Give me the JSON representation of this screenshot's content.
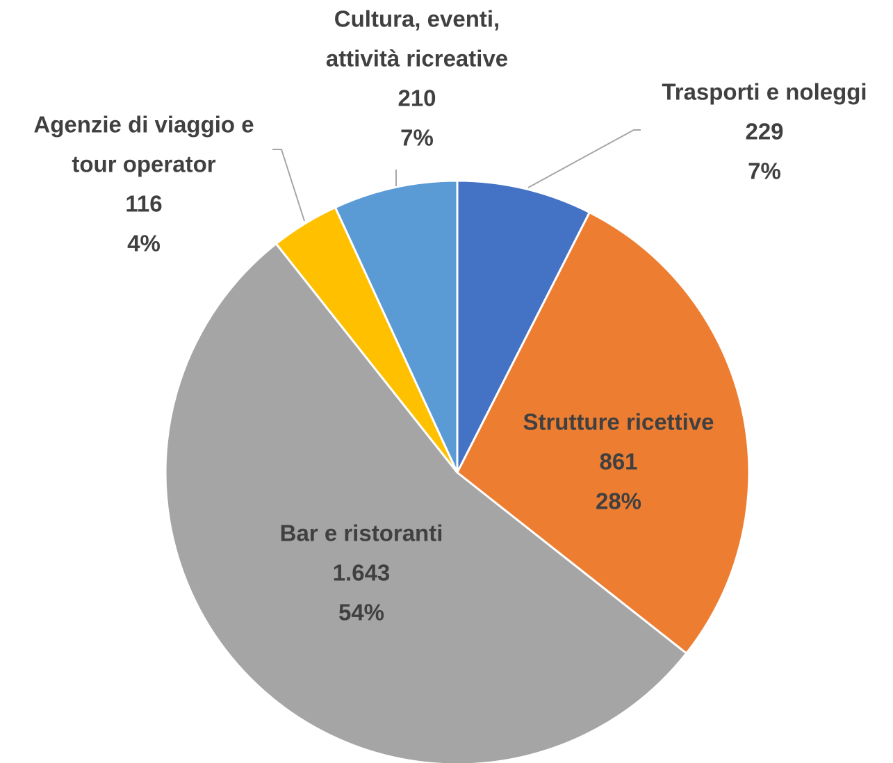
{
  "chart_data": {
    "type": "pie",
    "categories": [
      [
        "Trasporti e noleggi"
      ],
      [
        "Strutture ricettive"
      ],
      [
        "Bar e ristoranti"
      ],
      [
        "Agenzie di viaggio e",
        "tour operator"
      ],
      [
        "Cultura, eventi,",
        "attività ricreative"
      ]
    ],
    "values": [
      229,
      861,
      1643,
      116,
      210
    ],
    "value_labels": [
      "229",
      "861",
      "1.643",
      "116",
      "210"
    ],
    "percent_labels": [
      "7%",
      "28%",
      "54%",
      "4%",
      "7%"
    ],
    "colors": [
      "#4472c4",
      "#ed7d31",
      "#a5a5a5",
      "#ffc000",
      "#5b9bd5"
    ]
  }
}
